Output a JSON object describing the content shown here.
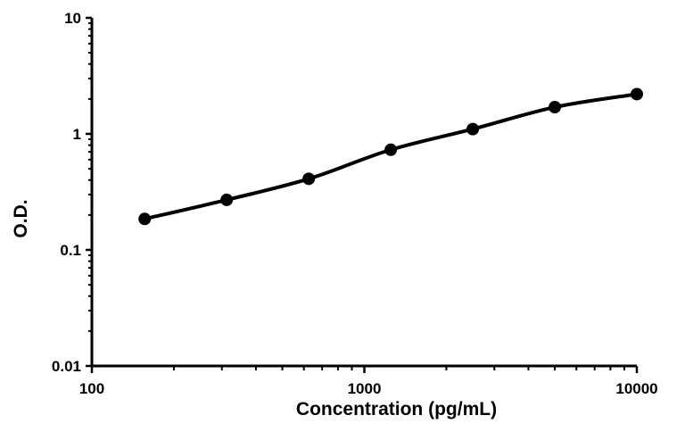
{
  "chart_data": {
    "type": "line",
    "title": "",
    "xlabel": "Concentration (pg/mL)",
    "ylabel": "O.D.",
    "x_scale": "log",
    "y_scale": "log",
    "xlim": [
      100,
      10000
    ],
    "ylim": [
      0.01,
      10
    ],
    "x_ticks": [
      "100",
      "1000",
      "10000"
    ],
    "y_ticks": [
      "0.01",
      "0.1",
      "1",
      "10"
    ],
    "grid": false,
    "legend": "none",
    "series": [
      {
        "color": "#000000",
        "x": [
          156.25,
          312.5,
          625,
          1250,
          2500,
          5000,
          10000
        ],
        "y": [
          0.185,
          0.27,
          0.41,
          0.73,
          1.1,
          1.7,
          2.2
        ]
      }
    ]
  }
}
